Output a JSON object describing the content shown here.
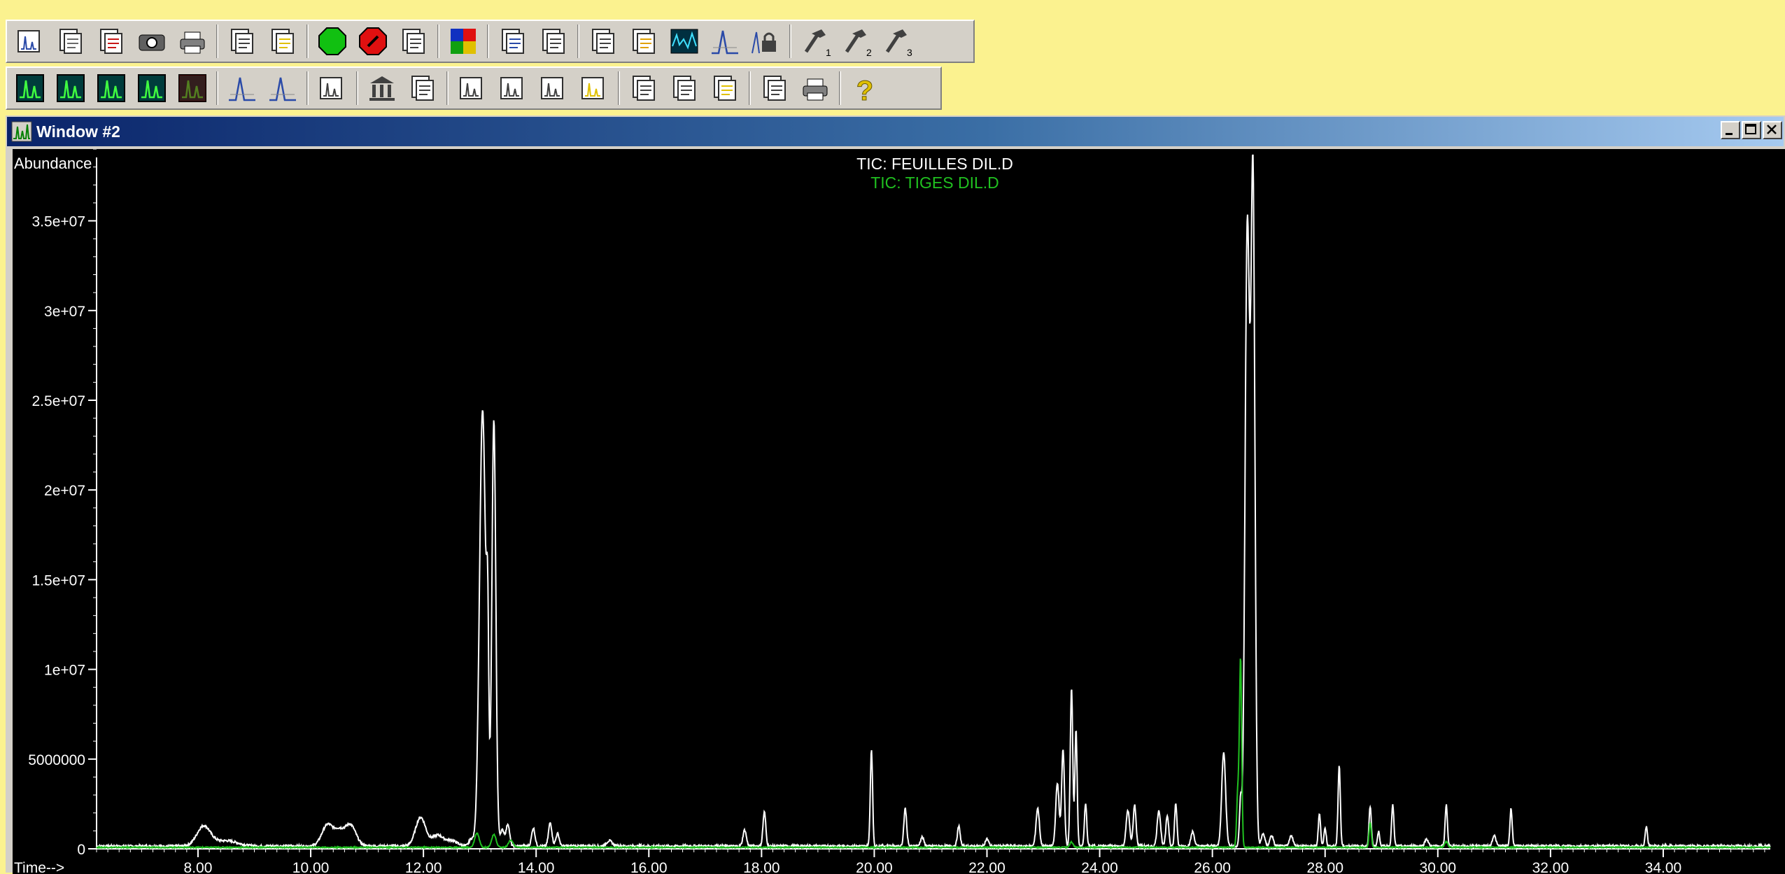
{
  "window": {
    "title": "Window #2",
    "controls": [
      "minimize",
      "maximize",
      "close"
    ]
  },
  "toolbar1": {
    "buttons": [
      {
        "name": "chrom-icon",
        "color": "#2a4aa8"
      },
      {
        "name": "load-icon",
        "color": "#6a6a6a"
      },
      {
        "name": "save-icon",
        "color": "#c81818"
      },
      {
        "name": "camera-icon",
        "color": "#404040"
      },
      {
        "name": "print-icon",
        "color": "#404040"
      },
      {
        "sep": true
      },
      {
        "name": "copy-icon",
        "color": "#404040"
      },
      {
        "name": "export-icon",
        "color": "#e0c000"
      },
      {
        "sep": true
      },
      {
        "name": "go-icon",
        "color": "#11c011"
      },
      {
        "name": "stop-icon",
        "color": "#e01010"
      },
      {
        "name": "integrate-icon",
        "color": "#404040"
      },
      {
        "sep": true
      },
      {
        "name": "colors-icon",
        "color": "#1030c0"
      },
      {
        "sep": true
      },
      {
        "name": "overlay-icon",
        "color": "#2a4aa8"
      },
      {
        "name": "report-icon",
        "color": "#404040"
      },
      {
        "sep": true
      },
      {
        "name": "library-icon",
        "color": "#404040"
      },
      {
        "name": "edit-icon",
        "color": "#e0a000"
      },
      {
        "name": "spectrum-icon",
        "color": "#008080"
      },
      {
        "name": "peak-fit-icon",
        "color": "#2a4aa8"
      },
      {
        "name": "lock-icon",
        "color": "#2a4aa8"
      },
      {
        "sep": true
      },
      {
        "name": "hammer-1-icon",
        "color": "#404040",
        "label": "1"
      },
      {
        "name": "hammer-2-icon",
        "color": "#404040",
        "label": "2"
      },
      {
        "name": "hammer-3-icon",
        "color": "#404040",
        "label": "3"
      }
    ]
  },
  "toolbar2": {
    "buttons": [
      {
        "name": "tic-icon",
        "color": "#008080"
      },
      {
        "name": "tic-scale-icon",
        "color": "#008080"
      },
      {
        "name": "mz-icon",
        "color": "#008080"
      },
      {
        "name": "tic-sub-icon",
        "color": "#008080"
      },
      {
        "name": "tic-down-icon",
        "color": "#c81818"
      },
      {
        "sep": true
      },
      {
        "name": "peak-area-icon",
        "color": "#2a4aa8"
      },
      {
        "name": "peak-base-icon",
        "color": "#2a4aa8"
      },
      {
        "sep": true
      },
      {
        "name": "histogram-icon",
        "color": "#404040"
      },
      {
        "sep": true
      },
      {
        "name": "library-building-icon",
        "color": "#404040"
      },
      {
        "name": "library-search-icon",
        "color": "#404040"
      },
      {
        "sep": true
      },
      {
        "name": "blank-chart-icon",
        "color": "#404040"
      },
      {
        "name": "check-chart-icon",
        "color": "#404040"
      },
      {
        "name": "pencil-chart-icon",
        "color": "#404040"
      },
      {
        "name": "up-chart-icon",
        "color": "#e0c000"
      },
      {
        "sep": true
      },
      {
        "name": "doc-copy-icon",
        "color": "#404040"
      },
      {
        "name": "doc-paste-icon",
        "color": "#404040"
      },
      {
        "name": "doc-stack-icon",
        "color": "#e0c000"
      },
      {
        "sep": true
      },
      {
        "name": "report-doc-icon",
        "color": "#404040"
      },
      {
        "name": "report-print-icon",
        "color": "#404040"
      },
      {
        "sep": true
      },
      {
        "name": "help-icon",
        "color": "#e0c000"
      }
    ]
  },
  "chart_data": {
    "type": "line",
    "title": "TIC: FEUILLES DIL.D",
    "subtitle": "TIC: TIGES DIL.D",
    "ylabel": "Abundance",
    "xlabel": "Time-->",
    "xlim": [
      6.2,
      35.9
    ],
    "ylim": [
      0,
      39000000
    ],
    "xticks": [
      "8.00",
      "10.00",
      "12.00",
      "14.00",
      "16.00",
      "18.00",
      "20.00",
      "22.00",
      "24.00",
      "26.00",
      "28.00",
      "30.00",
      "32.00",
      "34.00"
    ],
    "yticks": [
      "0",
      "5000000",
      "1e+07",
      "1.5e+07",
      "2e+07",
      "2.5e+07",
      "3e+07",
      "3.5e+07"
    ],
    "background": "#000000",
    "series": [
      {
        "name": "TIC: FEUILLES DIL.D",
        "color": "#ffffff",
        "baseline": 150000,
        "peaks": [
          [
            8.1,
            1100000,
            0.12
          ],
          [
            8.5,
            300000,
            0.2
          ],
          [
            10.3,
            1200000,
            0.1
          ],
          [
            10.5,
            700000,
            0.08
          ],
          [
            10.7,
            1200000,
            0.1
          ],
          [
            11.95,
            1600000,
            0.09
          ],
          [
            12.25,
            600000,
            0.1
          ],
          [
            12.5,
            300000,
            0.1
          ],
          [
            12.85,
            400000,
            0.04
          ],
          [
            13.05,
            24300000,
            0.055
          ],
          [
            13.14,
            9000000,
            0.02
          ],
          [
            13.25,
            23700000,
            0.035
          ],
          [
            13.4,
            900000,
            0.04
          ],
          [
            13.5,
            1200000,
            0.03
          ],
          [
            13.95,
            1000000,
            0.03
          ],
          [
            14.25,
            1300000,
            0.03
          ],
          [
            14.38,
            700000,
            0.03
          ],
          [
            15.3,
            300000,
            0.05
          ],
          [
            17.7,
            900000,
            0.03
          ],
          [
            18.05,
            1900000,
            0.025
          ],
          [
            19.95,
            5400000,
            0.02
          ],
          [
            20.55,
            2100000,
            0.025
          ],
          [
            20.85,
            500000,
            0.03
          ],
          [
            21.5,
            1100000,
            0.025
          ],
          [
            22.0,
            400000,
            0.03
          ],
          [
            22.9,
            2100000,
            0.03
          ],
          [
            23.25,
            3500000,
            0.03
          ],
          [
            23.35,
            5400000,
            0.025
          ],
          [
            23.5,
            8800000,
            0.022
          ],
          [
            23.58,
            6500000,
            0.02
          ],
          [
            23.75,
            2400000,
            0.02
          ],
          [
            24.5,
            2000000,
            0.03
          ],
          [
            24.62,
            2300000,
            0.025
          ],
          [
            25.05,
            2000000,
            0.03
          ],
          [
            25.2,
            1700000,
            0.025
          ],
          [
            25.35,
            2400000,
            0.02
          ],
          [
            25.65,
            800000,
            0.03
          ],
          [
            26.2,
            5200000,
            0.035
          ],
          [
            26.5,
            2500000,
            0.02
          ],
          [
            26.62,
            34500000,
            0.04
          ],
          [
            26.72,
            37000000,
            0.035
          ],
          [
            26.9,
            700000,
            0.03
          ],
          [
            27.05,
            600000,
            0.03
          ],
          [
            27.4,
            600000,
            0.03
          ],
          [
            27.9,
            1800000,
            0.02
          ],
          [
            28.0,
            1000000,
            0.02
          ],
          [
            28.25,
            4500000,
            0.02
          ],
          [
            28.8,
            2200000,
            0.02
          ],
          [
            28.95,
            800000,
            0.02
          ],
          [
            29.2,
            2300000,
            0.02
          ],
          [
            29.8,
            400000,
            0.03
          ],
          [
            30.15,
            2300000,
            0.02
          ],
          [
            31.0,
            600000,
            0.03
          ],
          [
            31.3,
            2100000,
            0.02
          ],
          [
            33.7,
            1100000,
            0.02
          ]
        ]
      },
      {
        "name": "TIC: TIGES DIL.D",
        "color": "#20c020",
        "baseline": 80000,
        "peaks": [
          [
            12.95,
            800000,
            0.04
          ],
          [
            13.25,
            700000,
            0.04
          ],
          [
            13.55,
            400000,
            0.04
          ],
          [
            23.5,
            300000,
            0.03
          ],
          [
            26.5,
            10500000,
            0.02
          ],
          [
            26.45,
            3000000,
            0.02
          ],
          [
            28.8,
            1400000,
            0.02
          ],
          [
            30.15,
            300000,
            0.03
          ]
        ]
      }
    ]
  }
}
